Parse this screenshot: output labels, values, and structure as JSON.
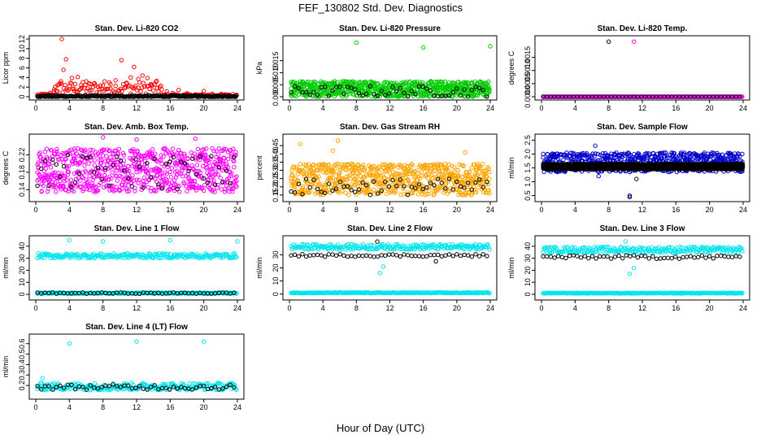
{
  "figure": {
    "title": "FEF_130802  Std. Dev. Diagnostics",
    "xlabel": "Hour of Day (UTC)"
  },
  "chart_data": [
    {
      "id": "p1",
      "type": "scatter",
      "title": "Stan. Dev. Li-820 CO2",
      "ylabel": "Licor ppm",
      "xlim": [
        0,
        24
      ],
      "ylim": [
        0,
        12
      ],
      "yticks": [
        0,
        2,
        4,
        6,
        8,
        10,
        12
      ],
      "xticks": [
        0,
        4,
        8,
        12,
        16,
        20,
        24
      ],
      "series": [
        {
          "color": "#ff0000",
          "pattern": "co2",
          "points": [
            [
              0.3,
              0.4
            ],
            [
              1.0,
              0.6
            ],
            [
              1.7,
              0.8
            ],
            [
              2.2,
              1.5
            ],
            [
              2.6,
              2.4
            ],
            [
              3.0,
              3.2
            ],
            [
              3.1,
              12.1
            ],
            [
              3.3,
              5.6
            ],
            [
              3.6,
              7.8
            ],
            [
              4.0,
              2.2
            ],
            [
              4.3,
              3.9
            ],
            [
              4.6,
              1.2
            ],
            [
              5.0,
              4.1
            ],
            [
              5.4,
              2.4
            ],
            [
              6.0,
              3.2
            ],
            [
              6.4,
              1.3
            ],
            [
              7.0,
              2.8
            ],
            [
              7.6,
              1.6
            ],
            [
              8.2,
              3.2
            ],
            [
              8.9,
              2.6
            ],
            [
              9.5,
              3.4
            ],
            [
              10.2,
              7.6
            ],
            [
              10.8,
              2.9
            ],
            [
              11.3,
              4.0
            ],
            [
              11.7,
              6.2
            ],
            [
              12.2,
              3.7
            ],
            [
              12.7,
              4.4
            ],
            [
              13.3,
              3.9
            ],
            [
              13.8,
              2.5
            ],
            [
              14.4,
              3.3
            ],
            [
              15.0,
              1.5
            ],
            [
              15.6,
              1.1
            ],
            [
              16.3,
              0.8
            ],
            [
              17.0,
              1.4
            ],
            [
              18.0,
              0.7
            ],
            [
              19.0,
              0.5
            ],
            [
              20.0,
              1.2
            ],
            [
              21.0,
              0.6
            ],
            [
              22.0,
              0.5
            ],
            [
              23.0,
              0.4
            ],
            [
              23.8,
              0.3
            ]
          ]
        },
        {
          "color": "#000000",
          "pattern": "low",
          "level": 0.1,
          "spread": 0.2
        }
      ]
    },
    {
      "id": "p2",
      "type": "scatter",
      "title": "Stan. Dev. Li-820 Pressure",
      "ylabel": "kPa",
      "xlim": [
        0,
        24
      ],
      "ylim": [
        0,
        0.024
      ],
      "yticks": [
        0.0,
        0.005,
        0.01,
        0.015
      ],
      "ytick_labels": [
        "0.000",
        "0.005",
        "0.010",
        "0.015"
      ],
      "xticks": [
        0,
        4,
        8,
        12,
        16,
        20,
        24
      ],
      "series": [
        {
          "color": "#00cc00",
          "pattern": "band",
          "lo": 0.0,
          "hi": 0.0065,
          "outliers": [
            [
              8,
              0.0225
            ],
            [
              16,
              0.0205
            ],
            [
              24,
              0.021
            ]
          ]
        },
        {
          "color": "#000000",
          "pattern": "band",
          "lo": 0.0,
          "hi": 0.0045,
          "sparse": true
        }
      ]
    },
    {
      "id": "p3",
      "type": "scatter",
      "title": "Stan. Dev. Li-820 Temp.",
      "ylabel": "degrees C",
      "xlim": [
        0,
        24
      ],
      "ylim": [
        0,
        0.0022
      ],
      "yticks": [
        0.0,
        0.0005,
        0.001,
        0.0015
      ],
      "ytick_labels": [
        "0.0000",
        "0.0005",
        "0.0010",
        "0.0015"
      ],
      "xticks": [
        0,
        4,
        8,
        12,
        16,
        20,
        24
      ],
      "series": [
        {
          "color": "#ff00ff",
          "pattern": "low",
          "level": 0.0,
          "spread": 0.0,
          "outliers": [
            [
              11,
              0.0021
            ]
          ]
        },
        {
          "color": "#000000",
          "pattern": "low",
          "level": 0.0,
          "spread": 0.0,
          "sparse": true,
          "outliers": [
            [
              8,
              0.0021
            ]
          ]
        }
      ]
    },
    {
      "id": "p4",
      "type": "scatter",
      "title": "Stan. Dev. Amb. Box Temp.",
      "ylabel": "degrees C",
      "xlim": [
        0,
        24
      ],
      "ylim": [
        0.12,
        0.26
      ],
      "yticks": [
        0.14,
        0.18,
        0.22
      ],
      "ytick_labels": [
        "0.14",
        "0.18",
        "0.22"
      ],
      "xticks": [
        0,
        4,
        8,
        12,
        16,
        20,
        24
      ],
      "series": [
        {
          "color": "#ff00ff",
          "pattern": "band",
          "lo": 0.135,
          "hi": 0.235,
          "outliers": [
            [
              8,
              0.26
            ],
            [
              12,
              0.255
            ],
            [
              19,
              0.257
            ]
          ]
        },
        {
          "color": "#000000",
          "pattern": "band",
          "lo": 0.14,
          "hi": 0.22,
          "sparse": true
        }
      ]
    },
    {
      "id": "p5",
      "type": "scatter",
      "title": "Stan. Dev. Gas Stream RH",
      "ylabel": "percent",
      "xlim": [
        0,
        24
      ],
      "ylim": [
        0.13,
        0.5
      ],
      "yticks": [
        0.15,
        0.2,
        0.25,
        0.3,
        0.35,
        0.4,
        0.45
      ],
      "ytick_labels": [
        "0.15",
        "0.20",
        "0.25",
        "0.30",
        "0.35",
        "0.40",
        "0.45"
      ],
      "xticks": [
        0,
        4,
        8,
        12,
        16,
        20,
        24
      ],
      "series": [
        {
          "color": "#ffa500",
          "pattern": "band",
          "lo": 0.15,
          "hi": 0.34,
          "outliers": [
            [
              1.3,
              0.46
            ],
            [
              5.8,
              0.48
            ],
            [
              5.2,
              0.42
            ],
            [
              21,
              0.41
            ]
          ]
        },
        {
          "color": "#000000",
          "pattern": "band",
          "lo": 0.15,
          "hi": 0.25,
          "sparse": true
        }
      ]
    },
    {
      "id": "p6",
      "type": "scatter",
      "title": "Stan. Dev. Sample Flow",
      "ylabel": "ml/min",
      "xlim": [
        0,
        24
      ],
      "ylim": [
        0.4,
        2.6
      ],
      "yticks": [
        0.5,
        1.0,
        1.5,
        2.0,
        2.5
      ],
      "ytick_labels": [
        "0.5",
        "1.0",
        "1.5",
        "2.0",
        "2.5"
      ],
      "xticks": [
        0,
        4,
        8,
        12,
        16,
        20,
        24
      ],
      "series": [
        {
          "color": "#0000cc",
          "pattern": "band",
          "lo": 1.35,
          "hi": 2.05,
          "outliers": [
            [
              6.4,
              2.3
            ],
            [
              10.5,
              0.5
            ],
            [
              6.8,
              1.2
            ]
          ]
        },
        {
          "color": "#000000",
          "pattern": "band",
          "lo": 1.45,
          "hi": 1.65,
          "dense": true,
          "outliers": [
            [
              10.5,
              0.45
            ],
            [
              11.3,
              1.1
            ]
          ]
        }
      ]
    },
    {
      "id": "p7",
      "type": "scatter",
      "title": "Stan. Dev. Line 1 Flow",
      "ylabel": "ml/min",
      "xlim": [
        0,
        24
      ],
      "ylim": [
        -2,
        46
      ],
      "yticks": [
        0,
        10,
        20,
        30,
        40
      ],
      "ytick_labels": [
        "0",
        "10",
        "20",
        "30",
        "40"
      ],
      "xticks": [
        0,
        4,
        8,
        12,
        16,
        20,
        24
      ],
      "series": [
        {
          "color": "#00e5ee",
          "pattern": "flat",
          "level": 32,
          "spread": 2,
          "outliers": [
            [
              4,
              45
            ],
            [
              8,
              44
            ],
            [
              16,
              45
            ],
            [
              24,
              44
            ]
          ]
        },
        {
          "color": "#00e5ee",
          "pattern": "flat",
          "level": 1,
          "spread": 0.5
        },
        {
          "color": "#000000",
          "pattern": "flat",
          "level": 1,
          "spread": 0.5,
          "sparse": true
        }
      ]
    },
    {
      "id": "p8",
      "type": "scatter",
      "title": "Stan. Dev. Line 2 Flow",
      "ylabel": "ml/min",
      "xlim": [
        0,
        24
      ],
      "ylim": [
        -2,
        42
      ],
      "yticks": [
        0,
        10,
        20,
        30
      ],
      "ytick_labels": [
        "0",
        "10",
        "20",
        "30"
      ],
      "xticks": [
        0,
        4,
        8,
        12,
        16,
        20,
        24
      ],
      "series": [
        {
          "color": "#00e5ee",
          "pattern": "flat",
          "level": 36,
          "spread": 2,
          "outliers": [
            [
              10.8,
              16
            ],
            [
              11.2,
              21
            ]
          ]
        },
        {
          "color": "#00e5ee",
          "pattern": "flat",
          "level": 1,
          "spread": 0.3
        },
        {
          "color": "#000000",
          "pattern": "flat",
          "level": 29.5,
          "spread": 1,
          "sparse": true,
          "outliers": [
            [
              10.5,
              40
            ],
            [
              17.5,
              25
            ]
          ]
        }
      ]
    },
    {
      "id": "p9",
      "type": "scatter",
      "title": "Stan. Dev. Line 3 Flow",
      "ylabel": "ml/min",
      "xlim": [
        0,
        24
      ],
      "ylim": [
        -2,
        46
      ],
      "yticks": [
        0,
        10,
        20,
        30,
        40
      ],
      "ytick_labels": [
        "0",
        "10",
        "20",
        "30",
        "40"
      ],
      "xticks": [
        0,
        4,
        8,
        12,
        16,
        20,
        24
      ],
      "series": [
        {
          "color": "#00e5ee",
          "pattern": "flat",
          "level": 37,
          "spread": 2.5,
          "outliers": [
            [
              10.5,
              17
            ],
            [
              11,
              22
            ],
            [
              10,
              44
            ]
          ]
        },
        {
          "color": "#00e5ee",
          "pattern": "flat",
          "level": 1,
          "spread": 0.3
        },
        {
          "color": "#000000",
          "pattern": "flat",
          "level": 31,
          "spread": 1.5,
          "sparse": true
        }
      ]
    },
    {
      "id": "p10",
      "type": "scatter",
      "title": "Stan. Dev. Line 4 (LT) Flow",
      "ylabel": "ml/min",
      "xlim": [
        0,
        24
      ],
      "ylim": [
        0.1,
        0.66
      ],
      "yticks": [
        0.2,
        0.3,
        0.4,
        0.5,
        0.6
      ],
      "ytick_labels": [
        "0.2",
        "0.3",
        "0.4",
        "0.5",
        "0.6"
      ],
      "xticks": [
        0,
        4,
        8,
        12,
        16,
        20,
        24
      ],
      "series": [
        {
          "color": "#00e5ee",
          "pattern": "flat",
          "level": 0.19,
          "spread": 0.035,
          "outliers": [
            [
              4,
              0.6
            ],
            [
              12,
              0.62
            ],
            [
              20,
              0.62
            ],
            [
              0.8,
              0.27
            ]
          ]
        },
        {
          "color": "#000000",
          "pattern": "flat",
          "level": 0.185,
          "spread": 0.025,
          "sparse": true
        }
      ]
    }
  ]
}
